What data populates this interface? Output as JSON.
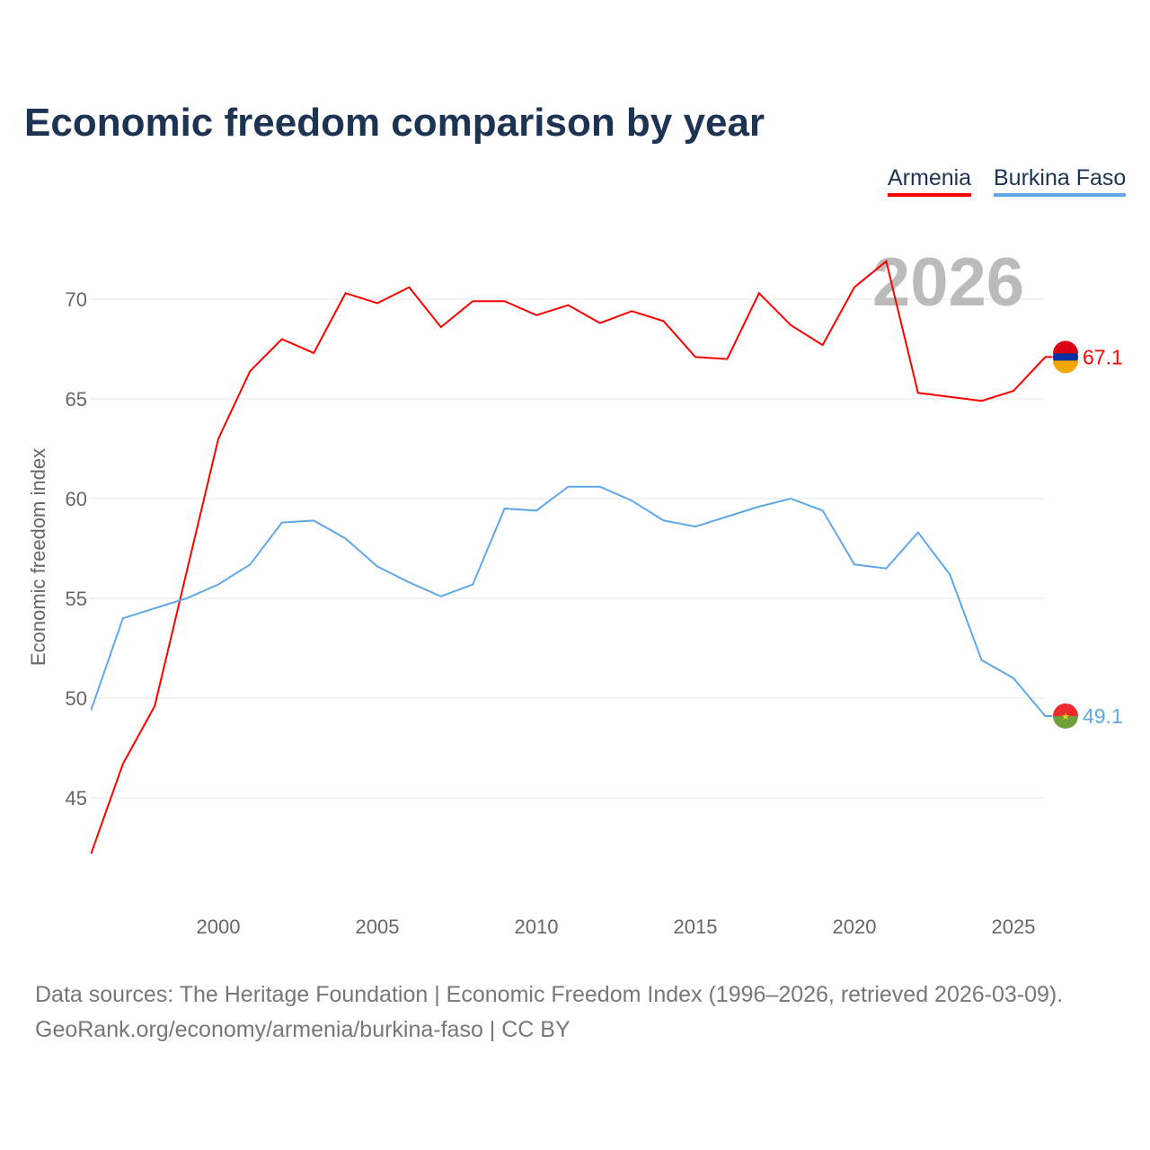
{
  "chart_data": {
    "type": "line",
    "title": "Economic freedom comparison by year",
    "ylabel": "Economic freedom index",
    "xlabel": "",
    "year_watermark": "2026",
    "ylim": [
      41,
      73
    ],
    "xlim": [
      1996,
      2026
    ],
    "yticks": [
      45,
      50,
      55,
      60,
      65,
      70
    ],
    "xticks": [
      2000,
      2005,
      2010,
      2015,
      2020,
      2025
    ],
    "grid": true,
    "legend_position": "top-right",
    "x": [
      1996,
      1997,
      1998,
      1999,
      2000,
      2001,
      2002,
      2003,
      2004,
      2005,
      2006,
      2007,
      2008,
      2009,
      2010,
      2011,
      2012,
      2013,
      2014,
      2015,
      2016,
      2017,
      2018,
      2019,
      2020,
      2021,
      2022,
      2023,
      2024,
      2025,
      2026
    ],
    "series": [
      {
        "name": "Armenia",
        "color": "#ff0000",
        "end_label": "67.1",
        "values": [
          42.2,
          46.7,
          49.6,
          56.3,
          63.0,
          66.4,
          68.0,
          67.3,
          70.3,
          69.8,
          70.6,
          68.6,
          69.9,
          69.9,
          69.2,
          69.7,
          68.8,
          69.4,
          68.9,
          67.1,
          67.0,
          70.3,
          68.7,
          67.7,
          70.6,
          71.9,
          65.3,
          65.1,
          64.9,
          65.4,
          67.1
        ]
      },
      {
        "name": "Burkina Faso",
        "color": "#5fa8e8",
        "end_label": "49.1",
        "values": [
          49.4,
          54.0,
          54.5,
          55.0,
          55.7,
          56.7,
          58.8,
          58.9,
          58.0,
          56.6,
          55.8,
          55.1,
          55.7,
          59.5,
          59.4,
          60.6,
          60.6,
          59.9,
          58.9,
          58.6,
          59.1,
          59.6,
          60.0,
          59.4,
          56.7,
          56.5,
          58.3,
          56.2,
          51.9,
          51.0,
          49.1
        ]
      }
    ]
  },
  "source": {
    "line1": "Data sources: The Heritage Foundation | Economic Freedom Index (1996–2026, retrieved 2026-03-09).",
    "line2": "GeoRank.org/economy/armenia/burkina-faso | CC BY"
  }
}
